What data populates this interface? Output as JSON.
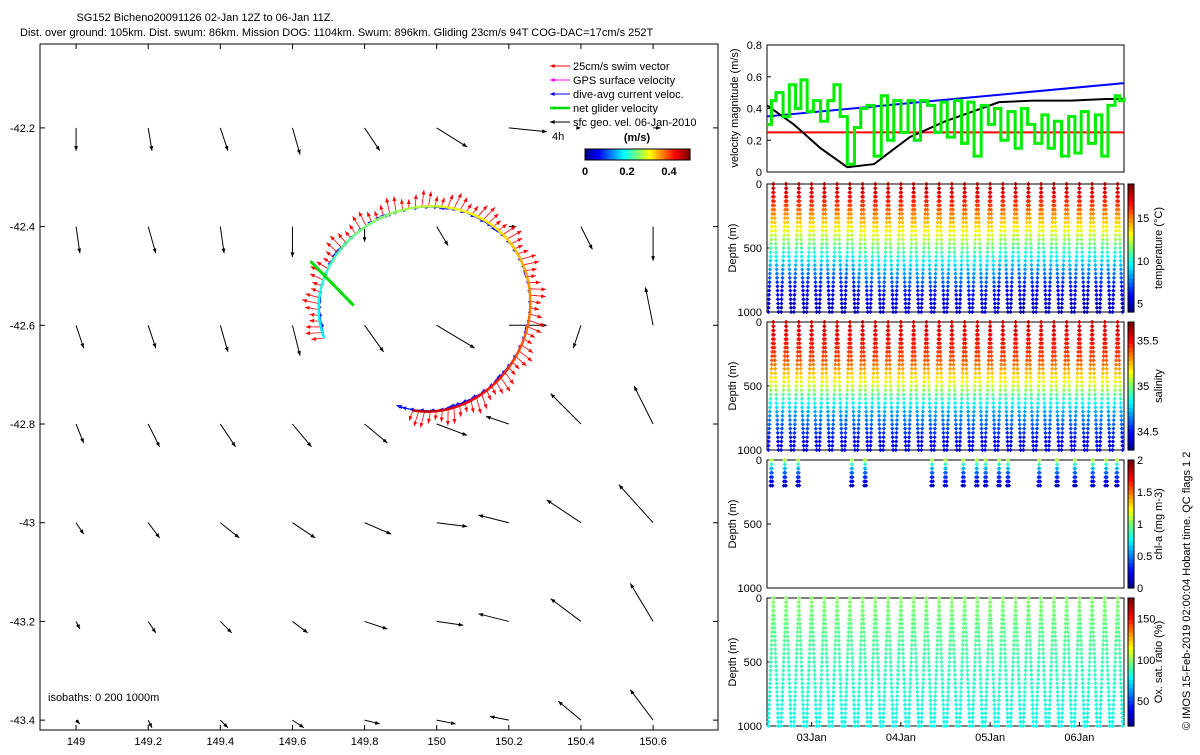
{
  "header": {
    "title_line1": "SG152 Bicheno20091126 02-Jan 12Z to 06-Jan 11Z.",
    "title_line2": "Dist. over ground: 105km. Dist. swum: 86km. Mission DOG: 1104km. Swum: 896km. Gliding 23cm/s 94T COG-DAC=17cm/s 252T"
  },
  "copyright": "© IMOS 15-Feb-2019 02:00:04 Hobart time. QC flags 1  2",
  "colors": {
    "swim": "#ff0000",
    "gps": "#ff00ff",
    "dac": "#0000ff",
    "net": "#00dd00",
    "geo": "#000000"
  },
  "chart_data": [
    {
      "type": "map-quiver",
      "xlim": [
        148.9,
        150.78
      ],
      "ylim": [
        -43.42,
        -42.03
      ],
      "x_ticks": [
        149,
        149.2,
        149.4,
        149.6,
        149.8,
        150,
        150.2,
        150.4,
        150.6
      ],
      "x_tick_labels": [
        "149",
        "149.2",
        "149.4",
        "149.6",
        "149.8",
        "150",
        "150.2",
        "150.4",
        "150.6"
      ],
      "y_ticks": [
        -42.2,
        -42.4,
        -42.6,
        -42.8,
        -43,
        -43.2,
        -43.4
      ],
      "y_tick_labels": [
        "-42.2",
        "-42.4",
        "-42.6",
        "-42.8",
        "-43",
        "-43.2",
        "-43.4"
      ],
      "legend": [
        {
          "label": "25cm/s swim vector",
          "color": "#ff0000"
        },
        {
          "label": "GPS surface velocity",
          "color": "#ff00ff"
        },
        {
          "label": "dive-avg current veloc.",
          "color": "#0000ff"
        },
        {
          "label": "net glider velocity",
          "color": "#00dd00"
        },
        {
          "label": "sfc geo. vel. 06-Jan-2010",
          "color": "#000000"
        }
      ],
      "time_marker": "4h",
      "colorbar": {
        "title": "(m/s)",
        "range": [
          0,
          0.5
        ],
        "tick_labels": [
          "0",
          "0.2",
          "0.4"
        ]
      },
      "isobaths_label": "isobaths: 0   200  1000m",
      "geo_vel_grid": {
        "lons": [
          149,
          149.2,
          149.4,
          149.6,
          149.8,
          150,
          150.2,
          150.4,
          150.6
        ],
        "lats": [
          -42.2,
          -42.4,
          -42.6,
          -42.8,
          -43,
          -43.2,
          -43.4
        ],
        "u": [
          [
            0.0,
            0.01,
            0.02,
            0.02,
            0.04,
            0.08,
            0.1,
            0.0,
            0.02
          ],
          [
            0.01,
            0.02,
            0.01,
            0.0,
            0.0,
            0.03,
            0.02,
            0.03,
            0.0
          ],
          [
            0.02,
            0.02,
            0.02,
            0.02,
            0.05,
            0.1,
            0.1,
            -0.02,
            -0.02
          ],
          [
            0.02,
            0.03,
            0.04,
            0.05,
            0.06,
            0.08,
            -0.06,
            -0.08,
            -0.05
          ],
          [
            0.02,
            0.03,
            0.05,
            0.06,
            0.07,
            0.08,
            -0.08,
            -0.09,
            -0.09
          ],
          [
            0.01,
            0.02,
            0.03,
            0.04,
            0.06,
            0.07,
            -0.08,
            -0.08,
            -0.06
          ],
          [
            0.01,
            0.01,
            0.02,
            0.03,
            0.04,
            0.05,
            -0.05,
            -0.06,
            -0.06
          ]
        ],
        "v": [
          [
            -0.06,
            -0.06,
            -0.06,
            -0.07,
            -0.06,
            -0.05,
            -0.01,
            0.0,
            0.0
          ],
          [
            -0.07,
            -0.07,
            -0.07,
            -0.08,
            -0.04,
            -0.05,
            0.0,
            -0.06,
            -0.09
          ],
          [
            -0.06,
            -0.06,
            -0.07,
            -0.08,
            -0.07,
            -0.06,
            0.0,
            -0.06,
            0.1
          ],
          [
            -0.05,
            -0.06,
            -0.06,
            -0.06,
            -0.05,
            -0.03,
            0.02,
            0.08,
            0.1
          ],
          [
            -0.03,
            -0.04,
            -0.04,
            -0.04,
            -0.03,
            -0.01,
            0.02,
            0.06,
            0.1
          ],
          [
            -0.02,
            -0.03,
            -0.03,
            -0.03,
            -0.02,
            -0.01,
            0.02,
            0.06,
            0.1
          ],
          [
            -0.01,
            -0.02,
            -0.02,
            -0.02,
            -0.01,
            -0.01,
            0.01,
            0.05,
            0.08
          ]
        ]
      }
    },
    {
      "type": "line",
      "ylabel": "velocity magnitude (m/s)",
      "ylim": [
        0,
        0.8
      ],
      "y_tick_labels": [
        "0",
        "0.2",
        "0.4",
        "0.6",
        "0.8"
      ],
      "xlim_days": [
        0,
        4
      ],
      "series": [
        {
          "color": "#ff0000",
          "x": [
            0,
            4
          ],
          "y": [
            0.25,
            0.25
          ]
        },
        {
          "color": "#0000ff",
          "x": [
            0,
            4
          ],
          "y": [
            0.35,
            0.56
          ]
        },
        {
          "color": "#000000",
          "x": [
            0,
            0.3,
            0.6,
            0.9,
            1.2,
            1.6,
            2.0,
            2.3,
            2.6,
            3.0,
            3.4,
            3.8,
            4.0
          ],
          "y": [
            0.42,
            0.3,
            0.15,
            0.03,
            0.05,
            0.22,
            0.32,
            0.38,
            0.44,
            0.45,
            0.45,
            0.46,
            0.46
          ]
        },
        {
          "color": "#00ee00",
          "x": [
            0.0,
            0.05,
            0.1,
            0.18,
            0.25,
            0.32,
            0.38,
            0.45,
            0.52,
            0.6,
            0.68,
            0.75,
            0.82,
            0.9,
            0.98,
            1.05,
            1.12,
            1.2,
            1.28,
            1.35,
            1.42,
            1.5,
            1.58,
            1.65,
            1.72,
            1.8,
            1.88,
            1.95,
            2.02,
            2.1,
            2.18,
            2.25,
            2.32,
            2.4,
            2.48,
            2.55,
            2.62,
            2.7,
            2.78,
            2.85,
            2.92,
            3.0,
            3.08,
            3.15,
            3.22,
            3.3,
            3.38,
            3.45,
            3.52,
            3.6,
            3.68,
            3.75,
            3.82,
            3.9,
            3.95,
            4.0
          ],
          "y": [
            0.3,
            0.45,
            0.5,
            0.35,
            0.55,
            0.4,
            0.58,
            0.38,
            0.45,
            0.32,
            0.45,
            0.55,
            0.35,
            0.05,
            0.28,
            0.4,
            0.42,
            0.1,
            0.48,
            0.2,
            0.45,
            0.25,
            0.45,
            0.2,
            0.45,
            0.42,
            0.25,
            0.44,
            0.22,
            0.45,
            0.18,
            0.44,
            0.1,
            0.42,
            0.3,
            0.4,
            0.2,
            0.38,
            0.15,
            0.4,
            0.3,
            0.18,
            0.36,
            0.15,
            0.32,
            0.1,
            0.35,
            0.12,
            0.38,
            0.18,
            0.36,
            0.1,
            0.42,
            0.48,
            0.45,
            0.47
          ]
        }
      ]
    },
    {
      "type": "scatter-section",
      "variable": "temperature",
      "ylabel": "Depth (m)",
      "ylim": [
        1000,
        0
      ],
      "y_tick_labels": [
        "0",
        "500",
        "1000"
      ],
      "colorbar_label": "temperature (°C)",
      "clim": [
        4,
        19
      ],
      "colorbar_ticks": [
        5,
        10,
        15
      ],
      "colorbar_tick_labels": [
        "5",
        "10",
        "15"
      ],
      "profile_count": 28,
      "profile_max_depth": 1000,
      "profile_values": [
        {
          "depth": 0,
          "value": 18.5
        },
        {
          "depth": 200,
          "value": 15.5
        },
        {
          "depth": 400,
          "value": 12.5
        },
        {
          "depth": 600,
          "value": 9.0
        },
        {
          "depth": 800,
          "value": 6.0
        },
        {
          "depth": 1000,
          "value": 4.5
        }
      ]
    },
    {
      "type": "scatter-section",
      "variable": "salinity",
      "ylabel": "Depth (m)",
      "ylim": [
        1000,
        0
      ],
      "y_tick_labels": [
        "0",
        "500",
        "1000"
      ],
      "colorbar_label": "salinity",
      "clim": [
        34.3,
        35.7
      ],
      "colorbar_ticks": [
        34.5,
        35,
        35.5
      ],
      "colorbar_tick_labels": [
        "34.5",
        "35",
        "35.5"
      ],
      "profile_count": 28,
      "profile_max_depth": 1000,
      "profile_values": [
        {
          "depth": 0,
          "value": 35.6
        },
        {
          "depth": 300,
          "value": 35.4
        },
        {
          "depth": 500,
          "value": 35.1
        },
        {
          "depth": 700,
          "value": 34.7
        },
        {
          "depth": 1000,
          "value": 34.4
        }
      ]
    },
    {
      "type": "scatter-section",
      "variable": "chl-a",
      "ylabel": "Depth (m)",
      "ylim": [
        1000,
        0
      ],
      "y_tick_labels": [
        "0",
        "500",
        "1000"
      ],
      "colorbar_label": "chl-a (mg m-3)",
      "clim": [
        0,
        2
      ],
      "colorbar_ticks": [
        0,
        0.5,
        1,
        1.5,
        2
      ],
      "colorbar_tick_labels": [
        "0",
        "0.5",
        "1",
        "1.5",
        "2"
      ],
      "profile_days": [
        0.05,
        0.2,
        0.35,
        0.95,
        1.1,
        1.85,
        2.0,
        2.2,
        2.35,
        2.45,
        2.6,
        2.7,
        3.05,
        3.25,
        3.45,
        3.65,
        3.8,
        3.92
      ],
      "profile_max_depth": 200,
      "profile_values": [
        {
          "depth": 0,
          "value": 1.1
        },
        {
          "depth": 80,
          "value": 0.5
        },
        {
          "depth": 200,
          "value": 0.1
        }
      ]
    },
    {
      "type": "scatter-section",
      "variable": "oxygen",
      "ylabel": "Depth (m)",
      "ylim": [
        1000,
        0
      ],
      "y_tick_labels": [
        "0",
        "500",
        "1000"
      ],
      "colorbar_label": "Ox. sat. ratio (%)",
      "clim": [
        20,
        175
      ],
      "colorbar_ticks": [
        50,
        100,
        150
      ],
      "colorbar_tick_labels": [
        "50",
        "100",
        "150"
      ],
      "profile_count": 28,
      "profile_max_depth": 1000,
      "profile_values": [
        {
          "depth": 0,
          "value": 100
        },
        {
          "depth": 500,
          "value": 88
        },
        {
          "depth": 1000,
          "value": 80
        }
      ],
      "x_tick_labels": [
        "03Jan",
        "04Jan",
        "05Jan",
        "06Jan"
      ],
      "x_ticks_days": [
        0.5,
        1.5,
        2.5,
        3.5
      ]
    }
  ]
}
